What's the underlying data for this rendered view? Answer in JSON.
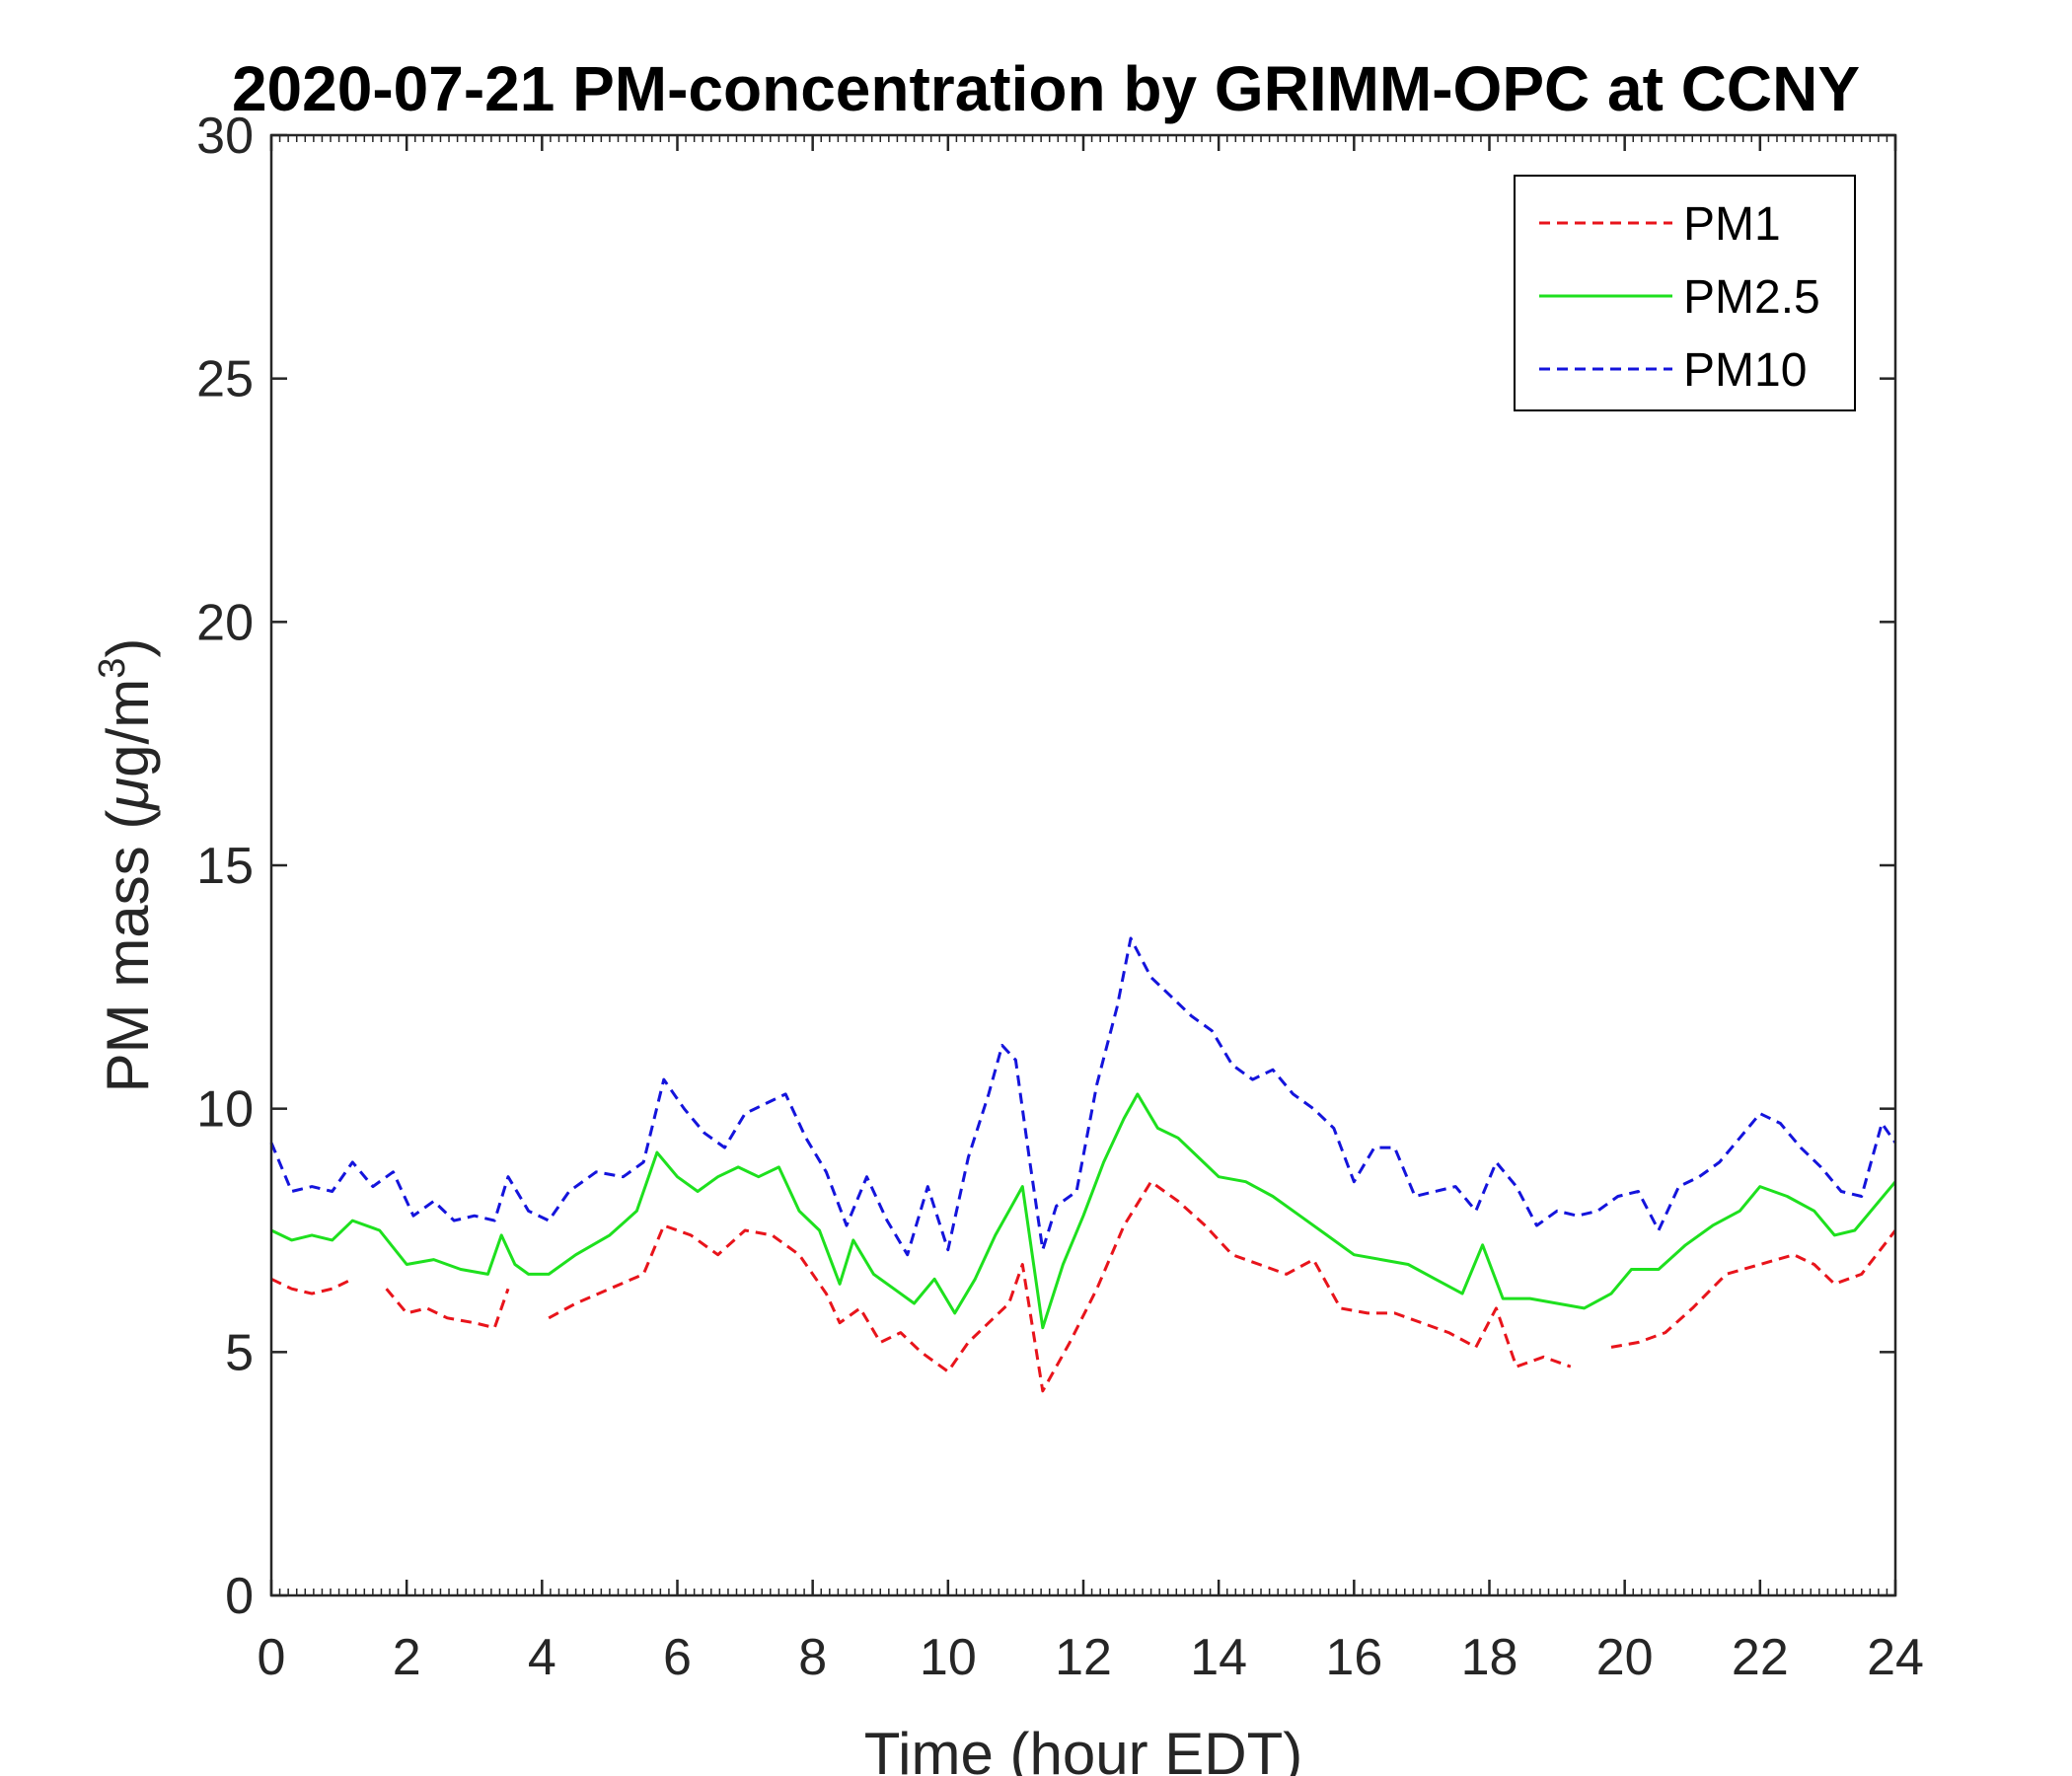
{
  "chart_data": {
    "type": "line",
    "title": "2020-07-21 PM-concentration by GRIMM-OPC at CCNY",
    "xlabel": "Time (hour EDT)",
    "ylabel": "PM mass (μg/m3)",
    "ylabel_parts": {
      "before": "PM mass (",
      "mu": "μ",
      "mid": "g/m",
      "sup": "3",
      "after": ")"
    },
    "xlim": [
      0,
      24
    ],
    "ylim": [
      0,
      30
    ],
    "xticks": [
      "0",
      "2",
      "4",
      "6",
      "8",
      "10",
      "12",
      "14",
      "16",
      "18",
      "20",
      "22",
      "24"
    ],
    "yticks": [
      "0",
      "5",
      "10",
      "15",
      "20",
      "25",
      "30"
    ],
    "legend_position": "top-right",
    "grid": false,
    "series": [
      {
        "name": "PM1",
        "color": "#e8141b",
        "style": "dashed",
        "x": [
          0,
          0.3,
          0.6,
          0.9,
          1.2,
          null,
          1.7,
          2.0,
          2.3,
          2.6,
          3.0,
          3.3,
          3.5,
          null,
          4.1,
          4.5,
          5.0,
          5.5,
          5.8,
          6.2,
          6.6,
          7.0,
          7.4,
          7.8,
          8.2,
          8.4,
          8.7,
          9.0,
          9.3,
          9.6,
          10.0,
          10.3,
          10.6,
          10.9,
          11.1,
          11.4,
          11.8,
          12.2,
          12.6,
          13.0,
          13.4,
          13.8,
          14.2,
          14.6,
          15.0,
          15.4,
          15.8,
          16.2,
          16.6,
          17.0,
          17.4,
          17.8,
          18.1,
          18.4,
          18.8,
          19.2,
          null,
          19.8,
          20.2,
          20.6,
          21.0,
          21.5,
          22.0,
          22.5,
          22.8,
          23.1,
          23.5,
          24.0
        ],
        "y": [
          6.5,
          6.3,
          6.2,
          6.3,
          6.5,
          null,
          6.3,
          5.8,
          5.9,
          5.7,
          5.6,
          5.5,
          6.3,
          null,
          5.7,
          6.0,
          6.3,
          6.6,
          7.6,
          7.4,
          7.0,
          7.5,
          7.4,
          7.0,
          6.2,
          5.6,
          5.9,
          5.2,
          5.4,
          5.0,
          4.6,
          5.2,
          5.6,
          6.0,
          6.8,
          4.2,
          5.2,
          6.3,
          7.6,
          8.5,
          8.1,
          7.6,
          7.0,
          6.8,
          6.6,
          6.9,
          5.9,
          5.8,
          5.8,
          5.6,
          5.4,
          5.1,
          5.9,
          4.7,
          4.9,
          4.7,
          null,
          5.1,
          5.2,
          5.4,
          5.9,
          6.6,
          6.8,
          7.0,
          6.8,
          6.4,
          6.6,
          7.5
        ]
      },
      {
        "name": "PM2.5",
        "color": "#1ee01e",
        "style": "solid",
        "x": [
          0,
          0.3,
          0.6,
          0.9,
          1.2,
          1.6,
          2.0,
          2.4,
          2.8,
          3.2,
          3.4,
          3.6,
          3.8,
          4.1,
          4.5,
          5.0,
          5.4,
          5.7,
          6.0,
          6.3,
          6.6,
          6.9,
          7.2,
          7.5,
          7.8,
          8.1,
          8.4,
          8.6,
          8.9,
          9.2,
          9.5,
          9.8,
          10.1,
          10.4,
          10.7,
          10.9,
          11.1,
          11.4,
          11.7,
          12.0,
          12.3,
          12.6,
          12.8,
          13.1,
          13.4,
          13.7,
          14.0,
          14.4,
          14.8,
          15.2,
          15.6,
          16.0,
          16.4,
          16.8,
          17.2,
          17.6,
          17.9,
          18.2,
          18.6,
          19.0,
          19.4,
          19.8,
          20.1,
          20.5,
          20.9,
          21.3,
          21.7,
          22.0,
          22.4,
          22.8,
          23.1,
          23.4,
          23.7,
          24.0
        ],
        "y": [
          7.5,
          7.3,
          7.4,
          7.3,
          7.7,
          7.5,
          6.8,
          6.9,
          6.7,
          6.6,
          7.4,
          6.8,
          6.6,
          6.6,
          7.0,
          7.4,
          7.9,
          9.1,
          8.6,
          8.3,
          8.6,
          8.8,
          8.6,
          8.8,
          7.9,
          7.5,
          6.4,
          7.3,
          6.6,
          6.3,
          6.0,
          6.5,
          5.8,
          6.5,
          7.4,
          7.9,
          8.4,
          5.5,
          6.8,
          7.8,
          8.9,
          9.8,
          10.3,
          9.6,
          9.4,
          9.0,
          8.6,
          8.5,
          8.2,
          7.8,
          7.4,
          7.0,
          6.9,
          6.8,
          6.5,
          6.2,
          7.2,
          6.1,
          6.1,
          6.0,
          5.9,
          6.2,
          6.7,
          6.7,
          7.2,
          7.6,
          7.9,
          8.4,
          8.2,
          7.9,
          7.4,
          7.5,
          8.0,
          8.5
        ]
      },
      {
        "name": "PM10",
        "color": "#1414dc",
        "style": "dashed",
        "x": [
          0,
          0.3,
          0.6,
          0.9,
          1.2,
          1.5,
          1.8,
          2.1,
          2.4,
          2.7,
          3.0,
          3.3,
          3.5,
          3.8,
          4.1,
          4.4,
          4.8,
          5.2,
          5.5,
          5.8,
          6.1,
          6.4,
          6.7,
          7.0,
          7.3,
          7.6,
          7.9,
          8.2,
          8.5,
          8.8,
          9.1,
          9.4,
          9.7,
          10.0,
          10.3,
          10.6,
          10.8,
          11.0,
          11.2,
          11.4,
          11.6,
          11.9,
          12.2,
          12.5,
          12.7,
          13.0,
          13.3,
          13.6,
          13.9,
          14.2,
          14.5,
          14.8,
          15.1,
          15.4,
          15.7,
          16.0,
          16.3,
          16.6,
          16.9,
          17.2,
          17.5,
          17.8,
          18.1,
          18.4,
          18.7,
          19.0,
          19.3,
          19.6,
          19.9,
          20.2,
          20.5,
          20.8,
          21.1,
          21.4,
          21.7,
          22.0,
          22.3,
          22.6,
          22.9,
          23.2,
          23.5,
          23.8,
          24.0
        ],
        "y": [
          9.3,
          8.3,
          8.4,
          8.3,
          8.9,
          8.4,
          8.7,
          7.8,
          8.1,
          7.7,
          7.8,
          7.7,
          8.6,
          7.9,
          7.7,
          8.3,
          8.7,
          8.6,
          8.9,
          10.6,
          10.0,
          9.5,
          9.2,
          9.9,
          10.1,
          10.3,
          9.4,
          8.7,
          7.6,
          8.6,
          7.7,
          7.0,
          8.4,
          7.1,
          9.0,
          10.3,
          11.3,
          11.0,
          9.0,
          7.1,
          8.0,
          8.3,
          10.5,
          12.1,
          13.5,
          12.7,
          12.3,
          11.9,
          11.6,
          10.9,
          10.6,
          10.8,
          10.3,
          10.0,
          9.6,
          8.5,
          9.2,
          9.2,
          8.2,
          8.3,
          8.4,
          7.9,
          8.9,
          8.4,
          7.6,
          7.9,
          7.8,
          7.9,
          8.2,
          8.3,
          7.5,
          8.4,
          8.6,
          8.9,
          9.4,
          9.9,
          9.7,
          9.2,
          8.8,
          8.3,
          8.2,
          9.7,
          9.3
        ]
      }
    ]
  }
}
